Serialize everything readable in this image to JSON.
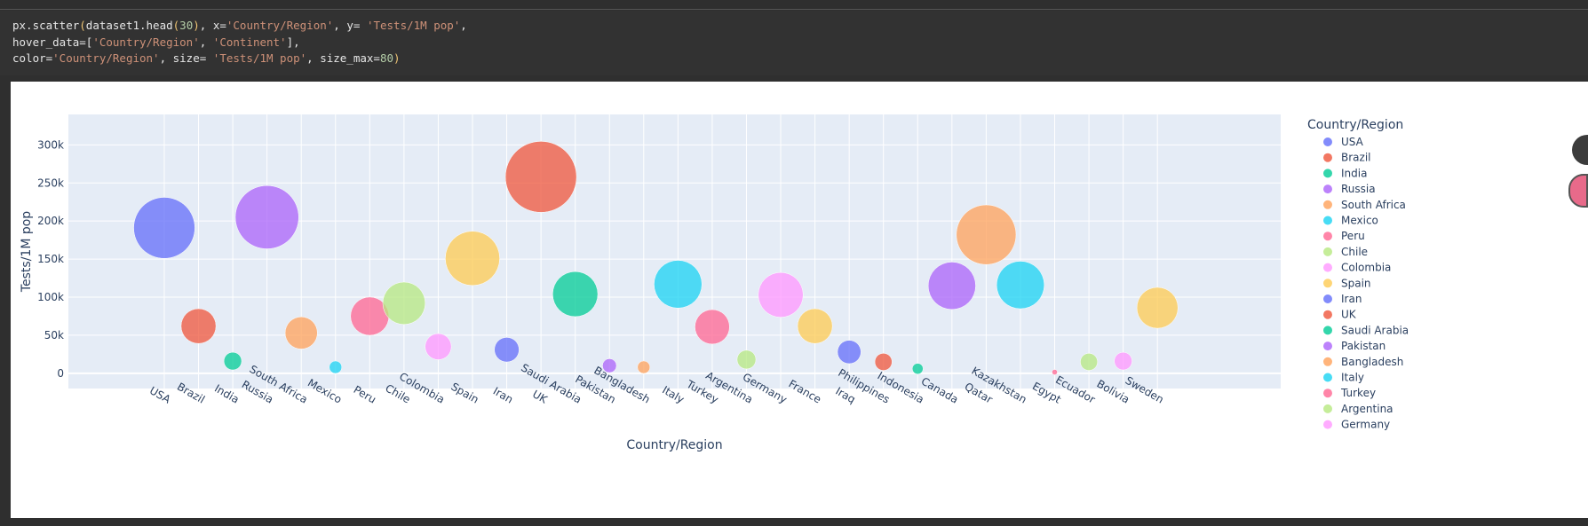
{
  "code": {
    "line1": {
      "fn": "px.scatter",
      "arg_a": "dataset1.head",
      "arg_n": "30",
      "mid": ", x=",
      "x": "'Country/Region'",
      "mid2": ", y= ",
      "y": "'Tests/1M pop'",
      "end": ","
    },
    "line2": {
      "pre": "hover_data=[",
      "a": "'Country/Region'",
      "sep": ", ",
      "b": "'Continent'",
      "post": "],"
    },
    "line3": {
      "pre": "color=",
      "color": "'Country/Region'",
      "mid": ", size= ",
      "size": "'Tests/1M pop'",
      "mid2": ", size_max=",
      "max": "80",
      "post": ")"
    }
  },
  "chart_data": {
    "type": "scatter",
    "xlabel": "Country/Region",
    "ylabel": "Tests/1M pop",
    "ylim": [
      -20000,
      340000
    ],
    "yticks": [
      0,
      50000,
      100000,
      150000,
      200000,
      250000,
      300000
    ],
    "ytick_labels": [
      "0",
      "50k",
      "100k",
      "150k",
      "200k",
      "250k",
      "300k"
    ],
    "size_max": 80,
    "grid": true,
    "legend_title": "Country/Region",
    "legend_position": "right",
    "points": [
      {
        "x": "USA",
        "y": 191000,
        "color": "#636efa"
      },
      {
        "x": "Brazil",
        "y": 62000,
        "color": "#EF553B"
      },
      {
        "x": "India",
        "y": 16000,
        "color": "#00cc96"
      },
      {
        "x": "Russia",
        "y": 205000,
        "color": "#ab63fa"
      },
      {
        "x": "South Africa",
        "y": 53000,
        "color": "#FFA15A"
      },
      {
        "x": "Mexico",
        "y": 8000,
        "color": "#19d3f3"
      },
      {
        "x": "Peru",
        "y": 75000,
        "color": "#FF6692"
      },
      {
        "x": "Chile",
        "y": 92000,
        "color": "#B6E880"
      },
      {
        "x": "Colombia",
        "y": 35000,
        "color": "#FF97FF"
      },
      {
        "x": "Spain",
        "y": 151000,
        "color": "#FECB52"
      },
      {
        "x": "Iran",
        "y": 31000,
        "color": "#636efa"
      },
      {
        "x": "UK",
        "y": 258000,
        "color": "#EF553B"
      },
      {
        "x": "Saudi Arabia",
        "y": 104000,
        "color": "#00cc96"
      },
      {
        "x": "Pakistan",
        "y": 10000,
        "color": "#ab63fa"
      },
      {
        "x": "Bangladesh",
        "y": 8000,
        "color": "#FFA15A"
      },
      {
        "x": "Italy",
        "y": 117000,
        "color": "#19d3f3"
      },
      {
        "x": "Turkey",
        "y": 61000,
        "color": "#FF6692"
      },
      {
        "x": "Argentina",
        "y": 18000,
        "color": "#B6E880"
      },
      {
        "x": "Germany",
        "y": 103000,
        "color": "#FF97FF"
      },
      {
        "x": "France",
        "y": 62000,
        "color": "#FECB52"
      },
      {
        "x": "Iraq",
        "y": 28000,
        "color": "#636efa"
      },
      {
        "x": "Philippines",
        "y": 15000,
        "color": "#EF553B"
      },
      {
        "x": "Indonesia",
        "y": 6000,
        "color": "#00cc96"
      },
      {
        "x": "Canada",
        "y": 115000,
        "color": "#ab63fa"
      },
      {
        "x": "Qatar",
        "y": 182000,
        "color": "#FFA15A"
      },
      {
        "x": "Kazakhstan",
        "y": 116000,
        "color": "#19d3f3"
      },
      {
        "x": "Egypt",
        "y": 1500,
        "color": "#FF6692"
      },
      {
        "x": "Ecuador",
        "y": 15000,
        "color": "#B6E880"
      },
      {
        "x": "Bolivia",
        "y": 16000,
        "color": "#FF97FF"
      },
      {
        "x": "Sweden",
        "y": 86000,
        "color": "#FECB52"
      }
    ],
    "legend": [
      {
        "name": "USA",
        "color": "#636efa"
      },
      {
        "name": "Brazil",
        "color": "#EF553B"
      },
      {
        "name": "India",
        "color": "#00cc96"
      },
      {
        "name": "Russia",
        "color": "#ab63fa"
      },
      {
        "name": "South Africa",
        "color": "#FFA15A"
      },
      {
        "name": "Mexico",
        "color": "#19d3f3"
      },
      {
        "name": "Peru",
        "color": "#FF6692"
      },
      {
        "name": "Chile",
        "color": "#B6E880"
      },
      {
        "name": "Colombia",
        "color": "#FF97FF"
      },
      {
        "name": "Spain",
        "color": "#FECB52"
      },
      {
        "name": "Iran",
        "color": "#636efa"
      },
      {
        "name": "UK",
        "color": "#EF553B"
      },
      {
        "name": "Saudi Arabia",
        "color": "#00cc96"
      },
      {
        "name": "Pakistan",
        "color": "#ab63fa"
      },
      {
        "name": "Bangladesh",
        "color": "#FFA15A"
      },
      {
        "name": "Italy",
        "color": "#19d3f3"
      },
      {
        "name": "Turkey",
        "color": "#FF6692"
      },
      {
        "name": "Argentina",
        "color": "#B6E880"
      },
      {
        "name": "Germany",
        "color": "#FF97FF"
      }
    ]
  },
  "colors": {
    "plot_bg": "#e5ecf6",
    "axis_text": "#2a3f5f",
    "grid": "#ffffff"
  }
}
